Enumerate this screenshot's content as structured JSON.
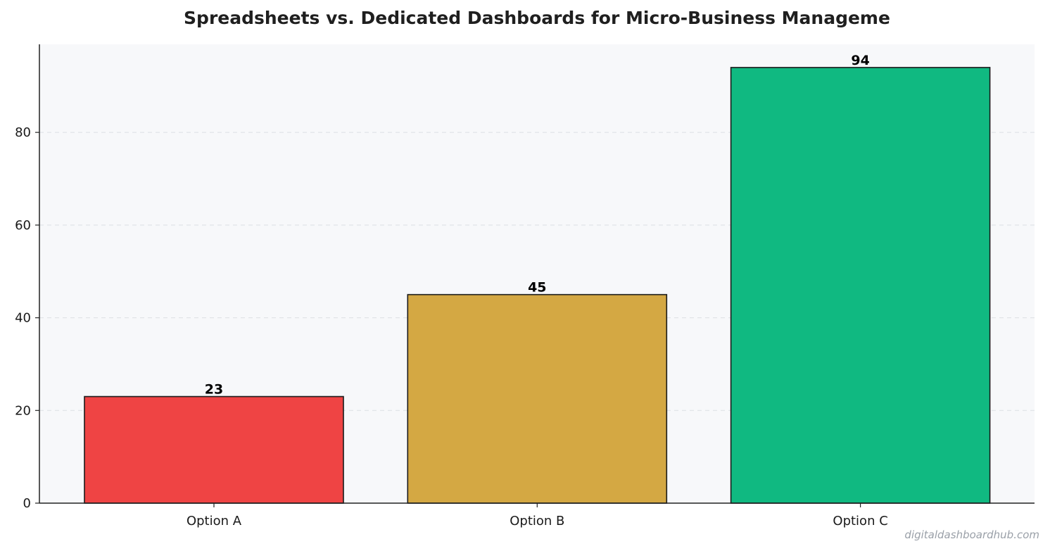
{
  "chart_data": {
    "type": "bar",
    "title": "Spreadsheets vs. Dedicated Dashboards for Micro-Business Manageme",
    "categories": [
      "Option A",
      "Option B",
      "Option C"
    ],
    "values": [
      23,
      45,
      94
    ],
    "colors": [
      "#ef4444",
      "#d4a843",
      "#10b981"
    ],
    "xlabel": "",
    "ylabel": "",
    "ylim": [
      0,
      99
    ],
    "yticks": [
      0,
      20,
      40,
      60,
      80
    ],
    "grid": true,
    "plot_background": "#f7f8fa"
  },
  "watermark": "digitaldashboardhub.com"
}
